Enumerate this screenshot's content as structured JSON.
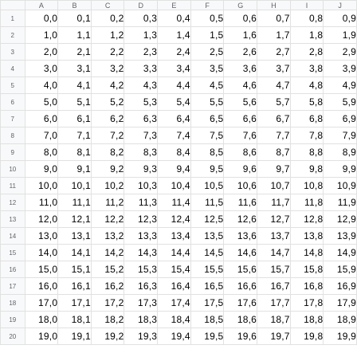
{
  "columns": [
    "A",
    "B",
    "C",
    "D",
    "E",
    "F",
    "G",
    "H",
    "I",
    "J"
  ],
  "rows": [
    {
      "label": "1",
      "cells": [
        "0,0",
        "0,1",
        "0,2",
        "0,3",
        "0,4",
        "0,5",
        "0,6",
        "0,7",
        "0,8",
        "0,9"
      ]
    },
    {
      "label": "2",
      "cells": [
        "1,0",
        "1,1",
        "1,2",
        "1,3",
        "1,4",
        "1,5",
        "1,6",
        "1,7",
        "1,8",
        "1,9"
      ]
    },
    {
      "label": "3",
      "cells": [
        "2,0",
        "2,1",
        "2,2",
        "2,3",
        "2,4",
        "2,5",
        "2,6",
        "2,7",
        "2,8",
        "2,9"
      ]
    },
    {
      "label": "4",
      "cells": [
        "3,0",
        "3,1",
        "3,2",
        "3,3",
        "3,4",
        "3,5",
        "3,6",
        "3,7",
        "3,8",
        "3,9"
      ]
    },
    {
      "label": "5",
      "cells": [
        "4,0",
        "4,1",
        "4,2",
        "4,3",
        "4,4",
        "4,5",
        "4,6",
        "4,7",
        "4,8",
        "4,9"
      ]
    },
    {
      "label": "6",
      "cells": [
        "5,0",
        "5,1",
        "5,2",
        "5,3",
        "5,4",
        "5,5",
        "5,6",
        "5,7",
        "5,8",
        "5,9"
      ]
    },
    {
      "label": "7",
      "cells": [
        "6,0",
        "6,1",
        "6,2",
        "6,3",
        "6,4",
        "6,5",
        "6,6",
        "6,7",
        "6,8",
        "6,9"
      ]
    },
    {
      "label": "8",
      "cells": [
        "7,0",
        "7,1",
        "7,2",
        "7,3",
        "7,4",
        "7,5",
        "7,6",
        "7,7",
        "7,8",
        "7,9"
      ]
    },
    {
      "label": "9",
      "cells": [
        "8,0",
        "8,1",
        "8,2",
        "8,3",
        "8,4",
        "8,5",
        "8,6",
        "8,7",
        "8,8",
        "8,9"
      ]
    },
    {
      "label": "10",
      "cells": [
        "9,0",
        "9,1",
        "9,2",
        "9,3",
        "9,4",
        "9,5",
        "9,6",
        "9,7",
        "9,8",
        "9,9"
      ]
    },
    {
      "label": "11",
      "cells": [
        "10,0",
        "10,1",
        "10,2",
        "10,3",
        "10,4",
        "10,5",
        "10,6",
        "10,7",
        "10,8",
        "10,9"
      ]
    },
    {
      "label": "12",
      "cells": [
        "11,0",
        "11,1",
        "11,2",
        "11,3",
        "11,4",
        "11,5",
        "11,6",
        "11,7",
        "11,8",
        "11,9"
      ]
    },
    {
      "label": "13",
      "cells": [
        "12,0",
        "12,1",
        "12,2",
        "12,3",
        "12,4",
        "12,5",
        "12,6",
        "12,7",
        "12,8",
        "12,9"
      ]
    },
    {
      "label": "14",
      "cells": [
        "13,0",
        "13,1",
        "13,2",
        "13,3",
        "13,4",
        "13,5",
        "13,6",
        "13,7",
        "13,8",
        "13,9"
      ]
    },
    {
      "label": "15",
      "cells": [
        "14,0",
        "14,1",
        "14,2",
        "14,3",
        "14,4",
        "14,5",
        "14,6",
        "14,7",
        "14,8",
        "14,9"
      ]
    },
    {
      "label": "16",
      "cells": [
        "15,0",
        "15,1",
        "15,2",
        "15,3",
        "15,4",
        "15,5",
        "15,6",
        "15,7",
        "15,8",
        "15,9"
      ]
    },
    {
      "label": "17",
      "cells": [
        "16,0",
        "16,1",
        "16,2",
        "16,3",
        "16,4",
        "16,5",
        "16,6",
        "16,7",
        "16,8",
        "16,9"
      ]
    },
    {
      "label": "18",
      "cells": [
        "17,0",
        "17,1",
        "17,2",
        "17,3",
        "17,4",
        "17,5",
        "17,6",
        "17,7",
        "17,8",
        "17,9"
      ]
    },
    {
      "label": "19",
      "cells": [
        "18,0",
        "18,1",
        "18,2",
        "18,3",
        "18,4",
        "18,5",
        "18,6",
        "18,7",
        "18,8",
        "18,9"
      ]
    },
    {
      "label": "20",
      "cells": [
        "19,0",
        "19,1",
        "19,2",
        "19,3",
        "19,4",
        "19,5",
        "19,6",
        "19,7",
        "19,8",
        "19,9"
      ]
    }
  ]
}
